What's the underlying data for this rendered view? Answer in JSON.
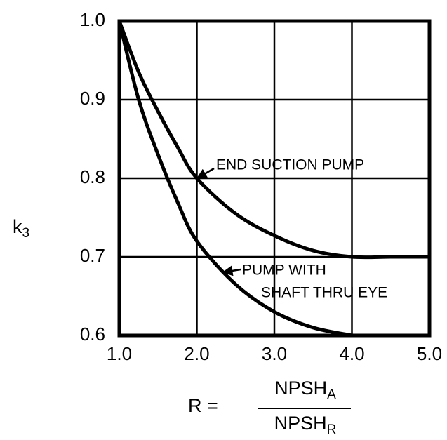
{
  "chart_data": {
    "type": "line",
    "x": [
      1.0,
      1.25,
      1.5,
      1.75,
      2.0,
      2.5,
      3.0,
      3.5,
      4.0,
      4.5,
      5.0
    ],
    "series": [
      {
        "name": "END SUCTION PUMP",
        "color": "#000000",
        "values": [
          1.0,
          0.935,
          0.885,
          0.84,
          0.8,
          0.755,
          0.727,
          0.708,
          0.7,
          0.7,
          0.7
        ]
      },
      {
        "name": "PUMP WITH SHAFT THRU EYE",
        "color": "#000000",
        "values": [
          1.0,
          0.9,
          0.83,
          0.77,
          0.72,
          0.665,
          0.63,
          0.61,
          0.6,
          null,
          null
        ]
      }
    ],
    "annotations": [
      "END SUCTION PUMP",
      "PUMP WITH",
      "SHAFT THRU EYE"
    ],
    "ylabel": {
      "main": "k",
      "sub": "3"
    },
    "xlabel": {
      "lhs": "R =",
      "numerator": {
        "main": "NPSH",
        "sub": "A"
      },
      "denominator": {
        "main": "NPSH",
        "sub": "R"
      }
    },
    "xlim": [
      1.0,
      5.0
    ],
    "ylim": [
      0.6,
      1.0
    ],
    "xticks": [
      {
        "value": 1,
        "label": "1.0"
      },
      {
        "value": 2,
        "label": "2.0"
      },
      {
        "value": 3,
        "label": "3.0"
      },
      {
        "value": 4,
        "label": "4.0"
      },
      {
        "value": 5,
        "label": "5.0"
      }
    ],
    "yticks": [
      {
        "value": 0.6,
        "label": "0.6"
      },
      {
        "value": 0.7,
        "label": "0.7"
      },
      {
        "value": 0.8,
        "label": "0.8"
      },
      {
        "value": 0.9,
        "label": "0.9"
      },
      {
        "value": 1,
        "label": "1.0"
      }
    ],
    "grid": true
  }
}
